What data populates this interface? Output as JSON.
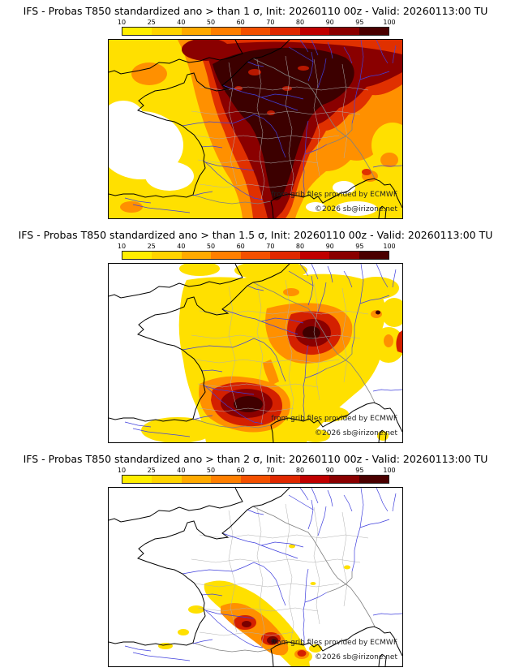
{
  "page": {
    "background": "#ffffff"
  },
  "panels": [
    {
      "id": "sigma-1",
      "title": "IFS - Probas T850  standardized ano > than 1 σ, Init: 20260110 00z - Valid: 20260113:00 TU",
      "threshold": "1 σ"
    },
    {
      "id": "sigma-1_5",
      "title": "IFS - Probas T850  standardized ano > than 1.5 σ, Init: 20260110 00z - Valid: 20260113:00 TU",
      "threshold": "1.5 σ"
    },
    {
      "id": "sigma-2",
      "title": "IFS - Probas T850  standardized ano > than 2 σ, Init: 20260110 00z - Valid: 20260113:00 TU",
      "threshold": "2 σ"
    }
  ],
  "colorbar": {
    "ticks": [
      "10",
      "25",
      "40",
      "50",
      "60",
      "70",
      "80",
      "90",
      "95",
      "100"
    ],
    "segment_colors": [
      "#ffee00",
      "#ffd400",
      "#ffaa00",
      "#ff7f00",
      "#f45000",
      "#e02800",
      "#c00000",
      "#8a0000",
      "#4a0000"
    ]
  },
  "attribution": {
    "provider": "from grib files provided by ECMWF",
    "copyright": "©2026 sb@irizone.net"
  },
  "map_colors": {
    "low": "#ffe000",
    "mid": "#ff9000",
    "high": "#e03000",
    "very_high": "#8a0000",
    "extreme": "#3c0000",
    "coast": "#000000",
    "rivers": "#4040dd",
    "departments": "#b0b0b0",
    "borders": "#808080"
  }
}
